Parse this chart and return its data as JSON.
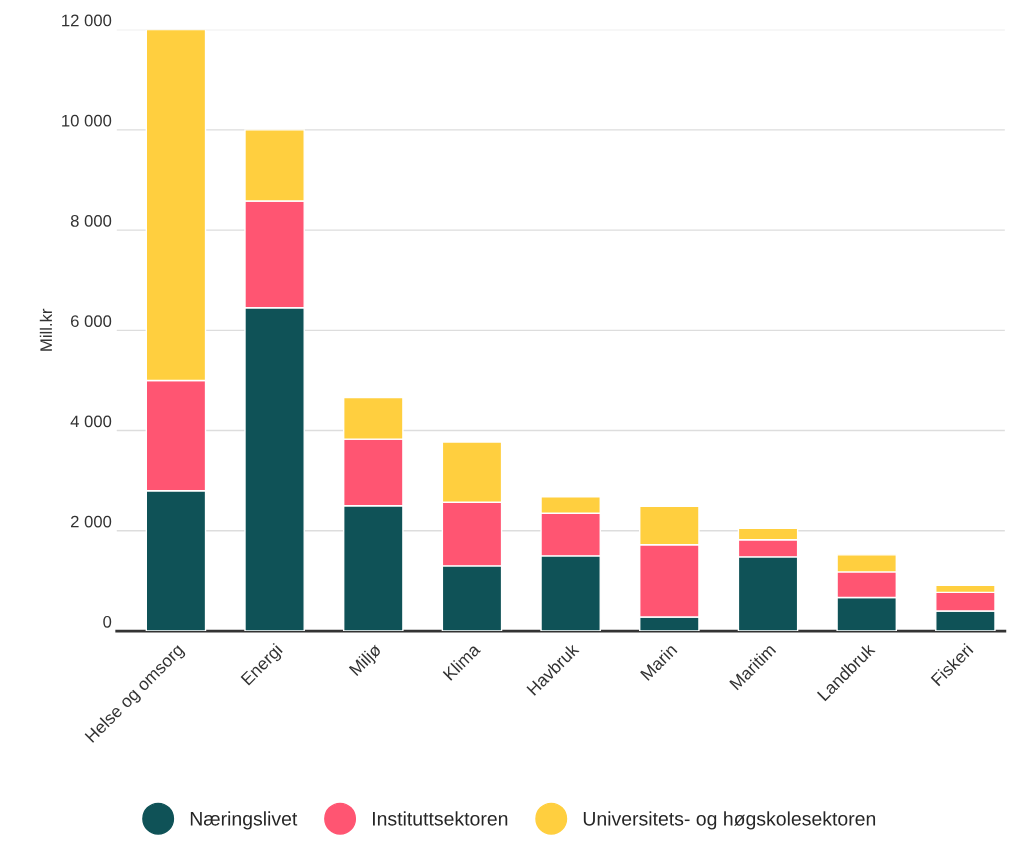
{
  "chart_data": {
    "type": "bar",
    "stacked": true,
    "ylabel": "Mill.kr",
    "categories": [
      "Helse og omsorg",
      "Energi",
      "Miljø",
      "Klima",
      "Havbruk",
      "Marin",
      "Maritim",
      "Landbruk",
      "Fiskeri"
    ],
    "series": [
      {
        "name": "Næringslivet",
        "color": "#0f5257",
        "values": [
          2800,
          6450,
          2500,
          1300,
          1500,
          280,
          1480,
          670,
          400
        ]
      },
      {
        "name": "Instituttsektoren",
        "color": "#ff5572",
        "values": [
          2200,
          2130,
          1330,
          1270,
          850,
          1440,
          340,
          510,
          370
        ]
      },
      {
        "name": "Universitets- og høgskolesektoren",
        "color": "#ffcf3f",
        "values": [
          7000,
          1420,
          830,
          1200,
          330,
          770,
          230,
          340,
          140
        ]
      }
    ],
    "ylim": [
      0,
      12000
    ],
    "yticks": [
      {
        "value": 0,
        "label": "0"
      },
      {
        "value": 2000,
        "label": "2 000"
      },
      {
        "value": 4000,
        "label": "4 000"
      },
      {
        "value": 6000,
        "label": "6 000"
      },
      {
        "value": 8000,
        "label": "8 000"
      },
      {
        "value": 10000,
        "label": "10 000"
      },
      {
        "value": 12000,
        "label": "12 000"
      }
    ],
    "grid": "y",
    "legend": "bottom"
  }
}
